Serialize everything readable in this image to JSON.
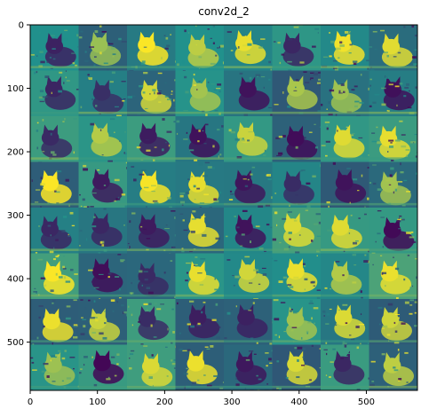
{
  "chart_data": {
    "type": "heatmap",
    "title": "conv2d_2",
    "xlabel": "",
    "ylabel": "",
    "grid": false,
    "xlim": [
      0,
      576
    ],
    "ylim": [
      576,
      0
    ],
    "x_ticks": [
      0,
      100,
      200,
      300,
      400,
      500
    ],
    "y_ticks": [
      0,
      100,
      200,
      300,
      400,
      500
    ],
    "grid_rows": 8,
    "grid_cols": 8,
    "tile_size": 72,
    "colormap": {
      "name": "viridis",
      "low": "#440154",
      "mid": "#21918c",
      "high": "#fde725"
    },
    "tile_content": "cat feature map"
  }
}
